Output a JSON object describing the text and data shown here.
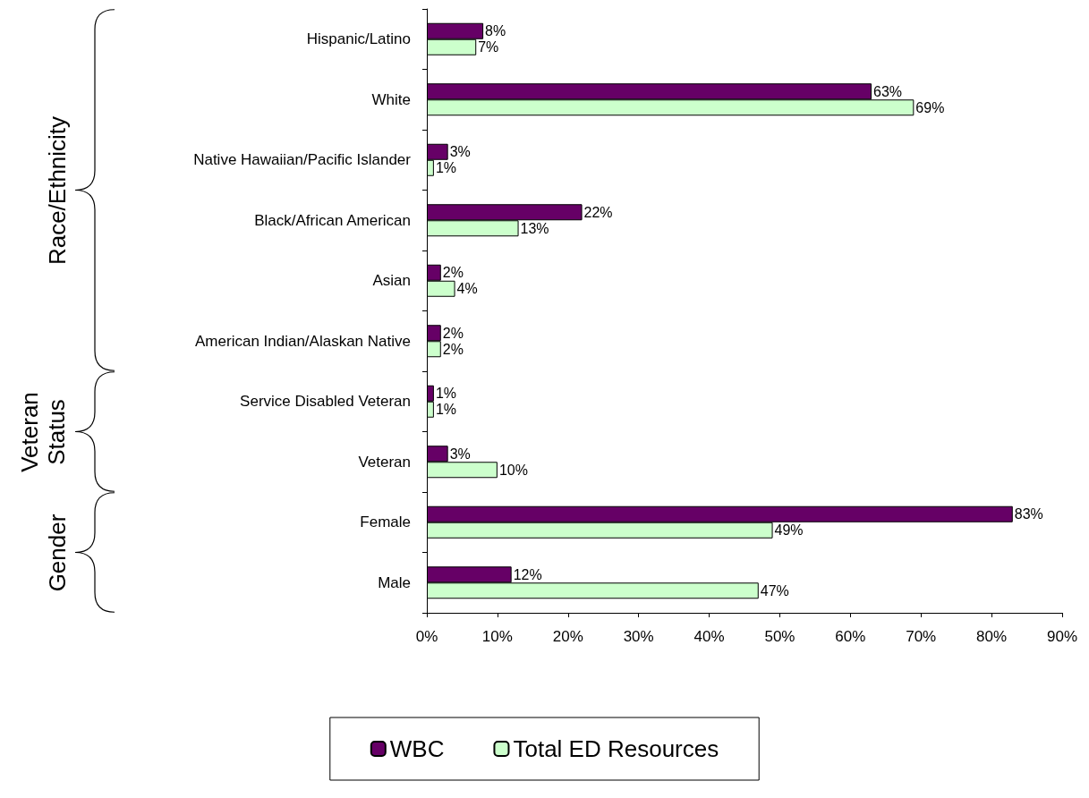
{
  "chart_data": {
    "type": "bar",
    "orientation": "horizontal",
    "categories": [
      "Hispanic/Latino",
      "White",
      "Native Hawaiian/Pacific Islander",
      "Black/African American",
      "Asian",
      "American Indian/Alaskan Native",
      "Service Disabled Veteran",
      "Veteran",
      "Female",
      "Male"
    ],
    "series": [
      {
        "name": "WBC",
        "color": "#660066",
        "values": [
          8,
          63,
          3,
          22,
          2,
          2,
          1,
          3,
          83,
          12
        ],
        "value_labels": [
          "8%",
          "63%",
          "3%",
          "22%",
          "2%",
          "2%",
          "1%",
          "3%",
          "83%",
          "12%"
        ]
      },
      {
        "name": "Total ED Resources",
        "color": "#ccffcc",
        "values": [
          7,
          69,
          1,
          13,
          4,
          2,
          1,
          10,
          49,
          47
        ],
        "value_labels": [
          "7%",
          "69%",
          "1%",
          "13%",
          "4%",
          "2%",
          "1%",
          "10%",
          "49%",
          "47%"
        ]
      }
    ],
    "xlim": [
      0,
      90
    ],
    "xticks": [
      {
        "value": 0,
        "label": "0%"
      },
      {
        "value": 10,
        "label": "10%"
      },
      {
        "value": 20,
        "label": "20%"
      },
      {
        "value": 30,
        "label": "30%"
      },
      {
        "value": 40,
        "label": "40%"
      },
      {
        "value": 50,
        "label": "50%"
      },
      {
        "value": 60,
        "label": "60%"
      },
      {
        "value": 70,
        "label": "70%"
      },
      {
        "value": 80,
        "label": "80%"
      },
      {
        "value": 90,
        "label": "90%"
      }
    ],
    "annotations": [
      "Race/Ethnicity",
      "Veteran Status",
      "Gender"
    ],
    "grid": false,
    "legend": "bottom"
  }
}
